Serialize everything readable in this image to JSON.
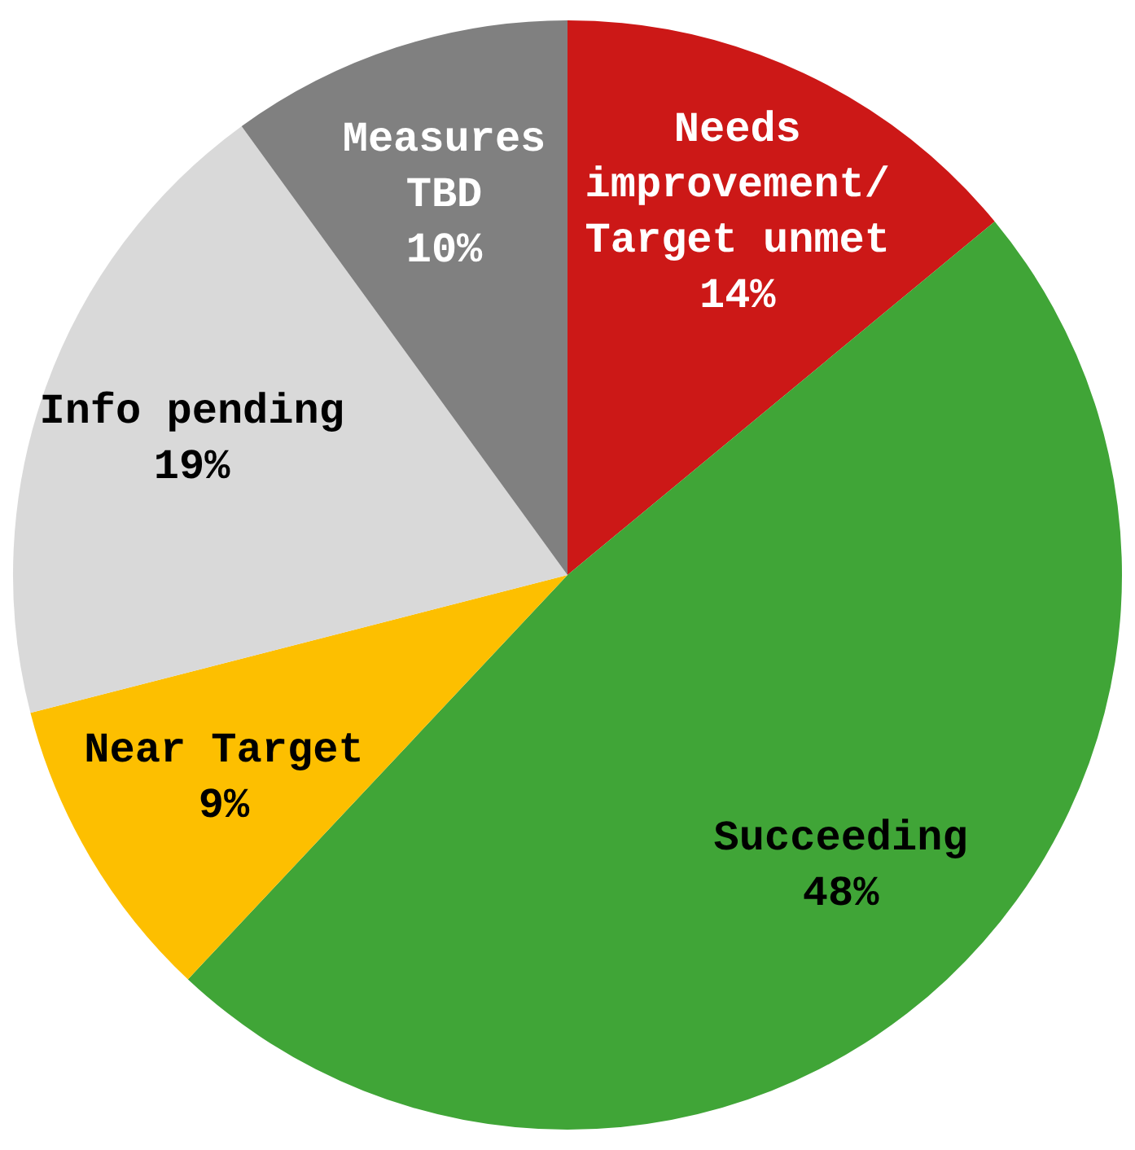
{
  "chart_data": {
    "type": "pie",
    "categories": [
      "Needs improvement/ Target unmet",
      "Succeeding",
      "Near Target",
      "Info pending",
      "Measures TBD"
    ],
    "values": [
      14,
      48,
      9,
      19,
      10
    ],
    "value_labels": [
      "14%",
      "48%",
      "9%",
      "19%",
      "10%"
    ],
    "colors": [
      "#cc1817",
      "#40a537",
      "#fdbf00",
      "#d9d9d9",
      "#808080"
    ],
    "legend": false
  }
}
